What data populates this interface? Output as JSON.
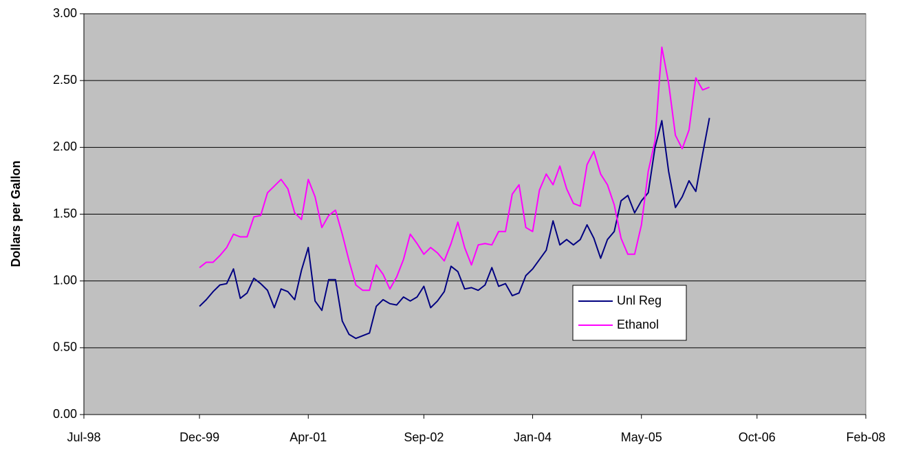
{
  "chart_data": {
    "type": "line",
    "y_label": "Dollars per Gallon",
    "x": [
      "1999-12",
      "2000-01",
      "2000-02",
      "2000-03",
      "2000-04",
      "2000-05",
      "2000-06",
      "2000-07",
      "2000-08",
      "2000-09",
      "2000-10",
      "2000-11",
      "2000-12",
      "2001-01",
      "2001-02",
      "2001-03",
      "2001-04",
      "2001-05",
      "2001-06",
      "2001-07",
      "2001-08",
      "2001-09",
      "2001-10",
      "2001-11",
      "2001-12",
      "2002-01",
      "2002-02",
      "2002-03",
      "2002-04",
      "2002-05",
      "2002-06",
      "2002-07",
      "2002-08",
      "2002-09",
      "2002-10",
      "2002-11",
      "2002-12",
      "2003-01",
      "2003-02",
      "2003-03",
      "2003-04",
      "2003-05",
      "2003-06",
      "2003-07",
      "2003-08",
      "2003-09",
      "2003-10",
      "2003-11",
      "2003-12",
      "2004-01",
      "2004-02",
      "2004-03",
      "2004-04",
      "2004-05",
      "2004-06",
      "2004-07",
      "2004-08",
      "2004-09",
      "2004-10",
      "2004-11",
      "2004-12",
      "2005-01",
      "2005-02",
      "2005-03",
      "2005-04",
      "2005-05",
      "2005-06",
      "2005-07",
      "2005-08",
      "2005-09",
      "2005-10",
      "2005-11",
      "2005-12",
      "2006-01",
      "2006-02",
      "2006-03"
    ],
    "series": [
      {
        "name": "Unl Reg",
        "color": "#000080",
        "values": [
          0.81,
          0.86,
          0.92,
          0.97,
          0.98,
          1.09,
          0.87,
          0.91,
          1.02,
          0.98,
          0.93,
          0.8,
          0.94,
          0.92,
          0.86,
          1.08,
          1.25,
          0.85,
          0.78,
          1.01,
          1.01,
          0.7,
          0.6,
          0.57,
          0.59,
          0.61,
          0.81,
          0.86,
          0.83,
          0.82,
          0.88,
          0.85,
          0.88,
          0.96,
          0.8,
          0.85,
          0.92,
          1.11,
          1.07,
          0.94,
          0.95,
          0.93,
          0.97,
          1.1,
          0.96,
          0.98,
          0.89,
          0.91,
          1.04,
          1.09,
          1.16,
          1.23,
          1.45,
          1.27,
          1.31,
          1.27,
          1.31,
          1.42,
          1.32,
          1.17,
          1.31,
          1.37,
          1.6,
          1.64,
          1.51,
          1.6,
          1.66,
          2.0,
          2.2,
          1.82,
          1.55,
          1.63,
          1.75,
          1.67,
          1.95,
          2.22
        ]
      },
      {
        "name": "Ethanol",
        "color": "#ff00ff",
        "values": [
          1.1,
          1.14,
          1.14,
          1.19,
          1.25,
          1.35,
          1.33,
          1.33,
          1.48,
          1.49,
          1.66,
          1.71,
          1.76,
          1.69,
          1.51,
          1.46,
          1.76,
          1.63,
          1.4,
          1.49,
          1.53,
          1.35,
          1.15,
          0.97,
          0.93,
          0.93,
          1.12,
          1.05,
          0.94,
          1.03,
          1.16,
          1.35,
          1.28,
          1.2,
          1.25,
          1.21,
          1.15,
          1.28,
          1.44,
          1.25,
          1.12,
          1.27,
          1.28,
          1.27,
          1.37,
          1.37,
          1.65,
          1.72,
          1.4,
          1.37,
          1.68,
          1.8,
          1.72,
          1.86,
          1.69,
          1.58,
          1.56,
          1.87,
          1.97,
          1.8,
          1.72,
          1.57,
          1.32,
          1.2,
          1.2,
          1.42,
          1.82,
          2.05,
          2.75,
          2.48,
          2.09,
          1.99,
          2.13,
          2.52,
          2.43,
          2.45
        ]
      }
    ],
    "xlim": [
      "1998-07",
      "2008-02"
    ],
    "xticks": [
      {
        "value": "1998-07",
        "label": "Jul-98"
      },
      {
        "value": "1999-12",
        "label": "Dec-99"
      },
      {
        "value": "2001-04",
        "label": "Apr-01"
      },
      {
        "value": "2002-09",
        "label": "Sep-02"
      },
      {
        "value": "2004-01",
        "label": "Jan-04"
      },
      {
        "value": "2005-05",
        "label": "May-05"
      },
      {
        "value": "2006-10",
        "label": "Oct-06"
      },
      {
        "value": "2008-02",
        "label": "Feb-08"
      }
    ],
    "ylim": [
      0,
      3
    ],
    "yticks": [
      {
        "value": 0,
        "label": "0.00"
      },
      {
        "value": 0.5,
        "label": "0.50"
      },
      {
        "value": 1,
        "label": "1.00"
      },
      {
        "value": 1.5,
        "label": "1.50"
      },
      {
        "value": 2,
        "label": "2.00"
      },
      {
        "value": 2.5,
        "label": "2.50"
      },
      {
        "value": 3,
        "label": "3.00"
      }
    ],
    "grid": true
  }
}
